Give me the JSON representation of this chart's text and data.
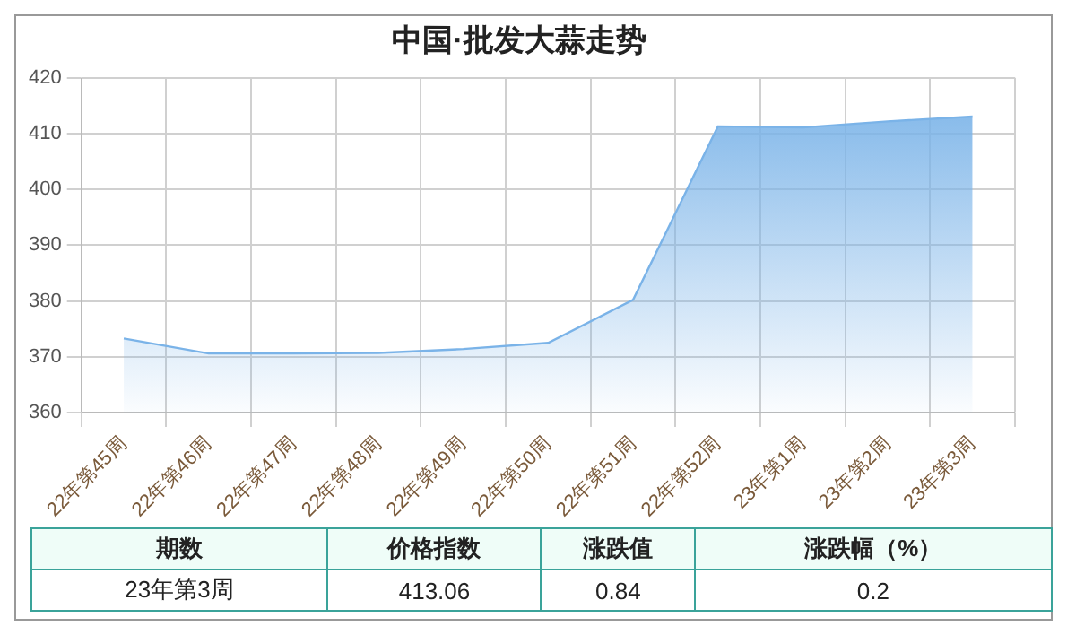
{
  "chart_data": {
    "type": "area",
    "title": "中国·批发大蒜走势",
    "categories": [
      "22年第45周",
      "22年第46周",
      "22年第47周",
      "22年第48周",
      "22年第49周",
      "22年第50周",
      "22年第51周",
      "22年第52周",
      "23年第1周",
      "23年第2周",
      "23年第3周"
    ],
    "series": [
      {
        "color": "#7ab3e8",
        "values": [
          373.3,
          370.6,
          370.6,
          370.7,
          371.4,
          372.5,
          380.2,
          411.3,
          411.1,
          412.2,
          413.06
        ]
      }
    ],
    "ylim": [
      360,
      420
    ],
    "yticks": [
      360,
      370,
      380,
      390,
      400,
      410,
      420
    ],
    "grid": true,
    "legend": false,
    "annotations": [
      "期数",
      "价格指数",
      "涨跌值",
      "涨跌幅（%）",
      "23年第3周",
      "413.06",
      "0.84",
      "0.2"
    ]
  }
}
